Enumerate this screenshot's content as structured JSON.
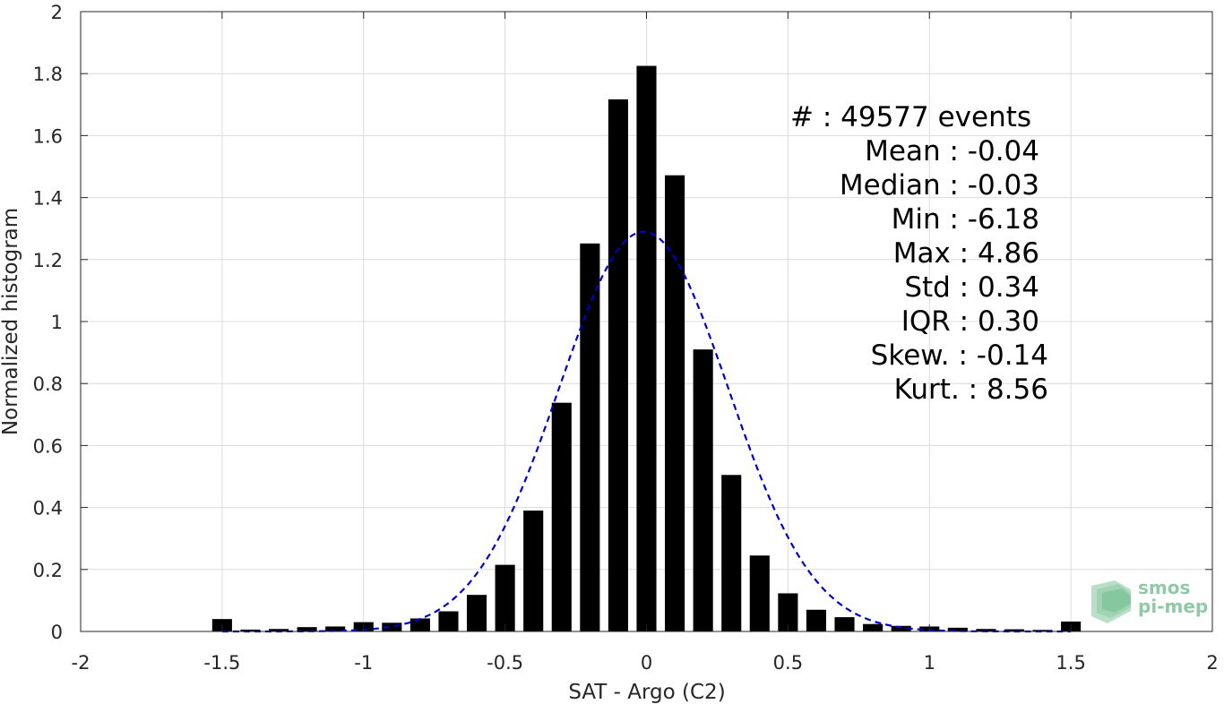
{
  "chart_data": {
    "type": "bar",
    "xlabel": "SAT - Argo (C2)",
    "ylabel": "Normalized histogram",
    "xlim": [
      -2,
      2
    ],
    "ylim": [
      0,
      2
    ],
    "xticks": [
      -2,
      -1.5,
      -1,
      -0.5,
      0,
      0.5,
      1,
      1.5,
      2
    ],
    "xtick_labels": [
      "-2",
      "-1.5",
      "-1",
      "-0.5",
      "0",
      "0.5",
      "1",
      "1.5",
      "2"
    ],
    "yticks": [
      0,
      0.2,
      0.4,
      0.6,
      0.8,
      1,
      1.2,
      1.4,
      1.6,
      1.8,
      2
    ],
    "ytick_labels": [
      "0",
      "0.2",
      "0.4",
      "0.6",
      "0.8",
      "1",
      "1.2",
      "1.4",
      "1.6",
      "1.8",
      "2"
    ],
    "grid": true,
    "bar_color": "#000000",
    "fit_color": "#0000cc",
    "bins": [
      {
        "x": -1.5,
        "y": 0.04
      },
      {
        "x": -1.4,
        "y": 0.006
      },
      {
        "x": -1.3,
        "y": 0.008
      },
      {
        "x": -1.2,
        "y": 0.014
      },
      {
        "x": -1.1,
        "y": 0.016
      },
      {
        "x": -1.0,
        "y": 0.03
      },
      {
        "x": -0.9,
        "y": 0.028
      },
      {
        "x": -0.8,
        "y": 0.042
      },
      {
        "x": -0.7,
        "y": 0.065
      },
      {
        "x": -0.6,
        "y": 0.118
      },
      {
        "x": -0.5,
        "y": 0.215
      },
      {
        "x": -0.4,
        "y": 0.39
      },
      {
        "x": -0.3,
        "y": 0.738
      },
      {
        "x": -0.2,
        "y": 1.252
      },
      {
        "x": -0.1,
        "y": 1.717
      },
      {
        "x": 0.0,
        "y": 1.825
      },
      {
        "x": 0.1,
        "y": 1.472
      },
      {
        "x": 0.2,
        "y": 0.91
      },
      {
        "x": 0.3,
        "y": 0.505
      },
      {
        "x": 0.4,
        "y": 0.245
      },
      {
        "x": 0.5,
        "y": 0.123
      },
      {
        "x": 0.6,
        "y": 0.07
      },
      {
        "x": 0.7,
        "y": 0.046
      },
      {
        "x": 0.8,
        "y": 0.024
      },
      {
        "x": 0.9,
        "y": 0.018
      },
      {
        "x": 1.0,
        "y": 0.016
      },
      {
        "x": 1.1,
        "y": 0.012
      },
      {
        "x": 1.2,
        "y": 0.008
      },
      {
        "x": 1.3,
        "y": 0.007
      },
      {
        "x": 1.4,
        "y": 0.005
      },
      {
        "x": 1.5,
        "y": 0.032
      }
    ],
    "fit": {
      "type": "gaussian",
      "mean": -0.01,
      "std": 0.3,
      "peak": 1.29,
      "x_range": [
        -1.5,
        1.5
      ]
    }
  },
  "stats": [
    "#  : 49577 events",
    "Mean : -0.04",
    "Median : -0.03",
    "Min : -6.18",
    "Max : 4.86",
    "Std : 0.34",
    "IQR : 0.30",
    "Skew. : -0.14",
    "Kurt. : 8.56"
  ],
  "logo": {
    "line1": "smos",
    "line2": "pi-mep"
  }
}
